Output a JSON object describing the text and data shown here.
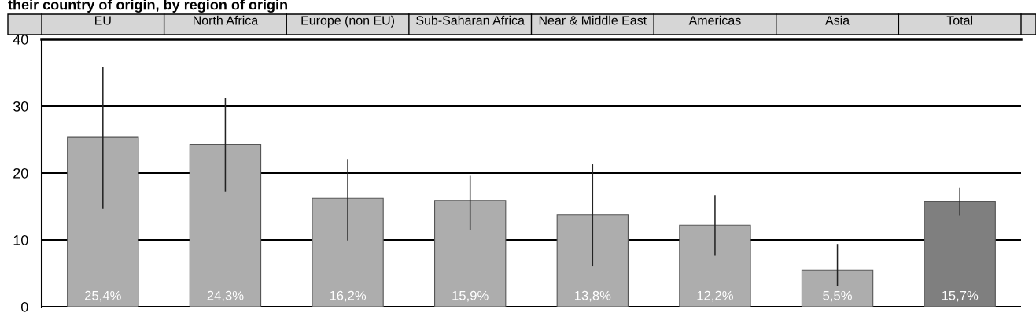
{
  "chart_data": {
    "type": "bar",
    "title": "their country of origin, by region of origin",
    "categories": [
      "EU",
      "North Africa",
      "Europe (non EU)",
      "Sub-Saharan Africa",
      "Near & Middle East",
      "Americas",
      "Asia",
      "Total"
    ],
    "values": [
      25.4,
      24.3,
      16.2,
      15.9,
      13.8,
      12.2,
      5.5,
      15.7
    ],
    "colors": [
      "#adadad",
      "#adadad",
      "#adadad",
      "#adadad",
      "#adadad",
      "#adadad",
      "#adadad",
      "#7f7f7f"
    ],
    "errors": [
      [
        14.7,
        35.8
      ],
      [
        17.3,
        31.1
      ],
      [
        10.0,
        22.0
      ],
      [
        11.5,
        19.5
      ],
      [
        6.2,
        21.2
      ],
      [
        7.8,
        16.6
      ],
      [
        3.2,
        9.3
      ],
      [
        13.8,
        17.7
      ]
    ],
    "value_labels": [
      "25,4%",
      "24,3%",
      "16,2%",
      "15,9%",
      "13,8%",
      "12,2%",
      "5,5%",
      "15,7%"
    ],
    "ylim": [
      0,
      40
    ],
    "yticks": [
      0,
      10,
      20,
      30,
      40
    ],
    "grid": "y"
  }
}
